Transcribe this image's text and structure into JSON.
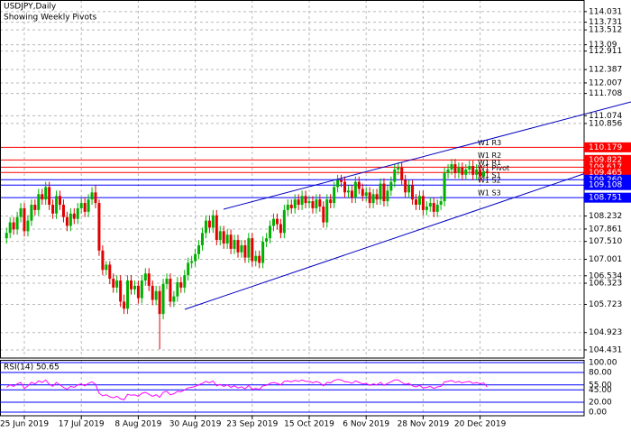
{
  "chart_data": {
    "type": "candlestick",
    "title": "USDJPY,Daily",
    "subtitle": "Showing Weekly Pivots",
    "categories": [
      null,
      null,
      null,
      null,
      null,
      "25 Jun 2019",
      null,
      null,
      null,
      null,
      null,
      null,
      null,
      null,
      null,
      null,
      null,
      null,
      null,
      null,
      null,
      "17 Jul 2019",
      null,
      null,
      null,
      null,
      null,
      null,
      null,
      null,
      null,
      null,
      null,
      null,
      null,
      null,
      null,
      "8 Aug 2019",
      null,
      null,
      null,
      null,
      null,
      null,
      null,
      null,
      null,
      null,
      null,
      null,
      null,
      null,
      null,
      "30 Aug 2019",
      null,
      null,
      null,
      null,
      null,
      null,
      null,
      null,
      null,
      null,
      null,
      null,
      null,
      null,
      null,
      "23 Sep 2019",
      null,
      null,
      null,
      null,
      null,
      null,
      null,
      null,
      null,
      null,
      null,
      null,
      null,
      null,
      null,
      "15 Oct 2019",
      null,
      null,
      null,
      null,
      null,
      null,
      null,
      null,
      null,
      null,
      null,
      null,
      null,
      null,
      null,
      "6 Nov 2019",
      null,
      null,
      null,
      null,
      null,
      null,
      null,
      null,
      null,
      null,
      null,
      null,
      null,
      null,
      null,
      "28 Nov 2019",
      null,
      null,
      null,
      null,
      null,
      null,
      null,
      null,
      null,
      null,
      null,
      null,
      null,
      null,
      null,
      "20 Dec 2019",
      null,
      null
    ],
    "open": [
      107.6,
      107.75,
      108.05,
      107.85,
      108.2,
      108.45,
      107.8,
      108.1,
      108.55,
      108.4,
      108.85,
      108.7,
      109.05,
      108.55,
      108.3,
      108.8,
      108.55,
      108.2,
      107.95,
      108.3,
      108.15,
      108.45,
      108.6,
      108.35,
      108.7,
      108.9,
      108.6,
      107.25,
      106.7,
      106.85,
      106.45,
      106.2,
      106.4,
      105.8,
      105.6,
      106.4,
      106.15,
      106.25,
      105.9,
      106.4,
      106.6,
      106.25,
      105.85,
      106.1,
      105.45,
      106.3,
      106.45,
      105.8,
      105.95,
      106.35,
      106.2,
      106.55,
      106.9,
      106.95,
      107.15,
      107.4,
      107.75,
      108.1,
      107.9,
      108.25,
      107.55,
      107.8,
      107.45,
      107.7,
      107.3,
      107.55,
      107.2,
      107.4,
      107.05,
      107.6,
      106.95,
      107.1,
      106.9,
      107.5,
      107.6,
      107.95,
      108.15,
      108.0,
      107.75,
      108.4,
      108.55,
      108.45,
      108.7,
      108.55,
      108.8,
      108.6,
      108.65,
      108.45,
      108.7,
      108.5,
      108.05,
      108.7,
      108.6,
      109.05,
      109.25,
      109.2,
      108.9,
      108.95,
      108.75,
      109.2,
      109.0,
      108.8,
      108.9,
      108.6,
      108.85,
      108.7,
      109.15,
      108.65,
      108.95,
      109.2,
      109.55,
      109.6,
      109.25,
      108.9,
      109.1,
      108.7,
      108.55,
      108.8,
      108.4,
      108.5,
      108.6,
      108.35,
      108.55,
      108.65,
      109.45,
      109.55,
      109.7,
      109.45,
      109.6,
      109.4,
      109.55,
      109.65,
      109.4,
      109.55,
      109.35,
      109.5
    ],
    "high": [
      107.9,
      108.2,
      108.2,
      108.35,
      108.6,
      108.6,
      108.25,
      108.7,
      108.7,
      109.0,
      109.0,
      109.2,
      109.2,
      108.7,
      108.95,
      108.95,
      108.7,
      108.35,
      108.45,
      108.45,
      108.6,
      108.75,
      108.75,
      108.85,
      109.05,
      109.1,
      108.7,
      107.4,
      106.95,
      106.95,
      106.6,
      106.55,
      106.55,
      106.0,
      106.55,
      106.55,
      106.4,
      106.4,
      106.55,
      106.75,
      106.75,
      106.4,
      106.25,
      106.25,
      106.45,
      106.6,
      106.6,
      106.1,
      106.5,
      106.5,
      106.7,
      107.05,
      107.1,
      107.3,
      107.55,
      107.9,
      108.25,
      108.25,
      108.4,
      108.4,
      107.95,
      107.95,
      107.85,
      107.85,
      107.7,
      107.7,
      107.55,
      107.55,
      107.75,
      107.75,
      107.25,
      107.25,
      107.65,
      107.75,
      108.1,
      108.3,
      108.3,
      108.15,
      108.55,
      108.7,
      108.7,
      108.85,
      108.85,
      108.95,
      108.95,
      108.8,
      108.8,
      108.85,
      108.85,
      108.65,
      108.85,
      108.85,
      109.2,
      109.4,
      109.4,
      109.35,
      109.1,
      109.1,
      109.35,
      109.35,
      109.15,
      109.05,
      109.05,
      109.0,
      109.0,
      109.3,
      109.3,
      109.1,
      109.35,
      109.7,
      109.75,
      109.75,
      109.4,
      109.25,
      109.25,
      108.85,
      108.95,
      108.95,
      108.65,
      108.75,
      108.75,
      108.7,
      108.8,
      109.6,
      109.7,
      109.85,
      109.85,
      109.75,
      109.75,
      109.7,
      109.8,
      109.8,
      109.7,
      109.7,
      109.65,
      109.65
    ],
    "low": [
      107.45,
      107.6,
      107.7,
      107.7,
      108.05,
      107.65,
      107.65,
      107.95,
      108.25,
      108.25,
      108.55,
      108.55,
      108.4,
      108.15,
      108.15,
      108.4,
      108.05,
      107.8,
      107.8,
      108.0,
      108.0,
      108.3,
      108.2,
      108.2,
      108.55,
      108.45,
      107.1,
      106.55,
      106.55,
      106.3,
      106.05,
      106.05,
      105.65,
      105.45,
      105.45,
      106.0,
      106.0,
      105.75,
      105.75,
      106.25,
      106.1,
      105.7,
      105.7,
      104.45,
      105.3,
      106.15,
      105.65,
      105.65,
      105.8,
      106.05,
      106.05,
      106.4,
      106.75,
      106.8,
      107.0,
      107.25,
      107.6,
      107.75,
      107.75,
      107.4,
      107.4,
      107.3,
      107.3,
      107.15,
      107.15,
      107.05,
      107.05,
      106.9,
      106.9,
      106.8,
      106.8,
      106.75,
      106.75,
      107.35,
      107.45,
      107.8,
      107.85,
      107.6,
      107.6,
      108.25,
      108.3,
      108.3,
      108.4,
      108.4,
      108.45,
      108.45,
      108.3,
      108.3,
      108.35,
      107.9,
      107.9,
      108.45,
      108.45,
      108.9,
      109.05,
      108.75,
      108.75,
      108.6,
      108.6,
      108.85,
      108.65,
      108.65,
      108.45,
      108.45,
      108.55,
      108.55,
      108.5,
      108.5,
      108.8,
      109.05,
      109.4,
      109.1,
      108.75,
      108.75,
      108.55,
      108.4,
      108.4,
      108.25,
      108.25,
      108.35,
      108.2,
      108.2,
      108.4,
      108.5,
      109.3,
      109.4,
      109.3,
      109.3,
      109.25,
      109.25,
      109.4,
      109.25,
      109.25,
      109.2,
      109.2,
      109.3
    ],
    "close": [
      107.75,
      108.05,
      107.85,
      108.2,
      108.45,
      107.8,
      108.1,
      108.55,
      108.4,
      108.85,
      108.7,
      109.05,
      108.55,
      108.3,
      108.8,
      108.55,
      108.2,
      107.95,
      108.3,
      108.15,
      108.45,
      108.6,
      108.35,
      108.7,
      108.9,
      108.6,
      107.25,
      106.7,
      106.85,
      106.45,
      106.2,
      106.4,
      105.8,
      105.6,
      106.4,
      106.15,
      106.25,
      105.9,
      106.4,
      106.6,
      106.25,
      105.85,
      106.1,
      105.45,
      106.3,
      106.45,
      105.8,
      105.95,
      106.35,
      106.2,
      106.55,
      106.9,
      106.95,
      107.15,
      107.4,
      107.75,
      108.1,
      107.9,
      108.25,
      107.55,
      107.8,
      107.45,
      107.7,
      107.3,
      107.55,
      107.2,
      107.4,
      107.05,
      107.6,
      106.95,
      107.1,
      106.9,
      107.5,
      107.6,
      107.95,
      108.15,
      108.0,
      107.75,
      108.4,
      108.55,
      108.45,
      108.7,
      108.55,
      108.8,
      108.6,
      108.65,
      108.45,
      108.7,
      108.5,
      108.05,
      108.7,
      108.6,
      109.05,
      109.25,
      109.2,
      108.9,
      108.95,
      108.75,
      109.2,
      109.0,
      108.8,
      108.9,
      108.6,
      108.85,
      108.7,
      109.15,
      108.65,
      108.95,
      109.2,
      109.55,
      109.6,
      109.25,
      108.9,
      109.1,
      108.7,
      108.55,
      108.8,
      108.4,
      108.5,
      108.6,
      108.35,
      108.55,
      108.65,
      109.45,
      109.55,
      109.7,
      109.45,
      109.6,
      109.4,
      109.55,
      109.65,
      109.4,
      109.55,
      109.35,
      109.5,
      109.45
    ],
    "up_color": "#00b000",
    "down_color": "#e00000",
    "ylim": [
      104.2,
      114.36
    ],
    "yticks": [
      114.031,
      113.731,
      113.512,
      113.09,
      112.911,
      112.387,
      112.007,
      111.708,
      111.074,
      110.856,
      108.232,
      107.861,
      {
        "value": 107.51,
        "label": "107.510"
      },
      107.001,
      106.534,
      106.323,
      105.723,
      104.923,
      104.431
    ],
    "grid": true,
    "pivots": [
      {
        "name": "W1 R3",
        "value": 110.179,
        "color": "#ff0000"
      },
      {
        "name": "W1 R2",
        "value": 109.822,
        "color": "#ff0000"
      },
      {
        "name": "W1 R1",
        "value": 109.617,
        "color": "#ff0000"
      },
      {
        "name": "W1 Pivot",
        "value": 109.465,
        "color": "#ff0000"
      },
      {
        "name": "W1 S1",
        "value": 109.26,
        "value_label": "109.260",
        "color": "#0000ff"
      },
      {
        "name": "W1 S2",
        "value": 109.108,
        "color": "#0000ff"
      },
      {
        "name": "W1 S3",
        "value": 108.751,
        "color": "#0000ff"
      }
    ],
    "indicator": {
      "type": "line",
      "label": "RSI(14) 50.65",
      "color": "#ff00ff",
      "level_color": "#0000ff",
      "ylim": [
        0,
        100
      ],
      "yticks": [
        {
          "value": 100,
          "label": "100.00"
        },
        {
          "value": 80,
          "label": "80.00"
        },
        {
          "value": 55,
          "label": "55.00"
        },
        {
          "value": 45,
          "label": "45.00"
        },
        {
          "value": 20,
          "label": "20.00"
        },
        {
          "value": 0,
          "label": "0.00"
        }
      ],
      "values": [
        50,
        55,
        52,
        57,
        60,
        48,
        53,
        60,
        57,
        63,
        60,
        65,
        56,
        52,
        60,
        55,
        50,
        46,
        52,
        50,
        55,
        57,
        53,
        58,
        61,
        56,
        38,
        33,
        35,
        31,
        29,
        32,
        27,
        25,
        36,
        34,
        35,
        32,
        38,
        40,
        36,
        32,
        35,
        30,
        40,
        42,
        35,
        37,
        42,
        41,
        45,
        49,
        50,
        52,
        55,
        58,
        62,
        59,
        63,
        53,
        56,
        52,
        55,
        50,
        53,
        49,
        51,
        47,
        54,
        46,
        48,
        46,
        53,
        54,
        58,
        60,
        58,
        55,
        62,
        63,
        61,
        64,
        62,
        65,
        62,
        62,
        59,
        62,
        59,
        53,
        60,
        59,
        64,
        66,
        65,
        61,
        61,
        58,
        63,
        60,
        57,
        58,
        54,
        57,
        55,
        60,
        54,
        58,
        61,
        65,
        65,
        60,
        56,
        58,
        53,
        51,
        54,
        49,
        50,
        52,
        48,
        51,
        52,
        61,
        62,
        64,
        60,
        62,
        59,
        61,
        62,
        58,
        60,
        57,
        59,
        50.65
      ]
    }
  }
}
